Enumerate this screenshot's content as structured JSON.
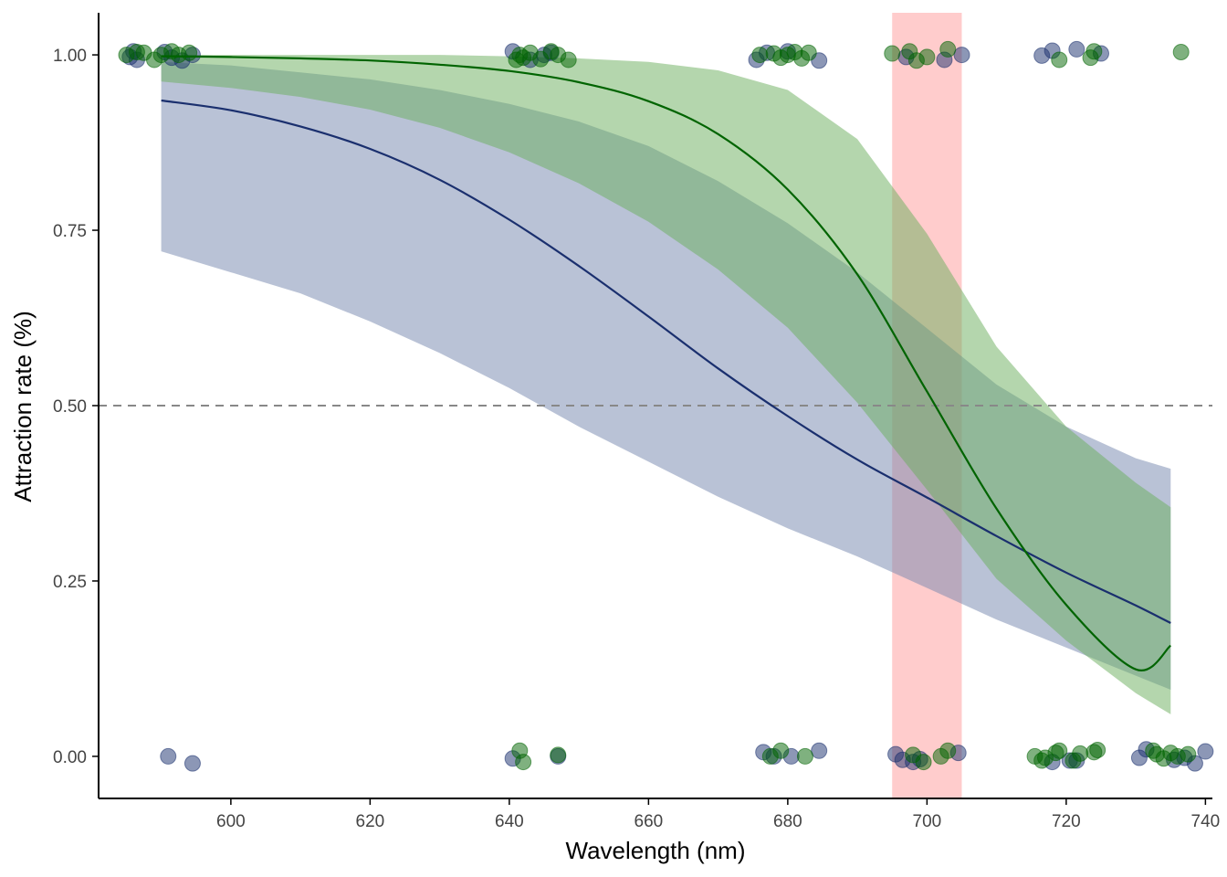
{
  "chart_data": {
    "type": "scatter",
    "title": "",
    "xlabel": "Wavelength (nm)",
    "ylabel": "Attraction rate (%)",
    "xlim": [
      581,
      741
    ],
    "ylim": [
      -0.06,
      1.06
    ],
    "x_ticks": [
      600,
      620,
      640,
      660,
      680,
      700,
      720,
      740
    ],
    "x_tick_labels": [
      "600",
      "620",
      "640",
      "660",
      "680",
      "700",
      "720",
      "740"
    ],
    "y_ticks": [
      0.0,
      0.25,
      0.5,
      0.75,
      1.0
    ],
    "y_tick_labels": [
      "0.00",
      "0.25",
      "0.50",
      "0.75",
      "1.00"
    ],
    "grid": false,
    "legend": "none",
    "reference_line": {
      "y": 0.5,
      "style": "dashed",
      "color": "#888888"
    },
    "highlight_band": {
      "x_min": 695,
      "x_max": 705,
      "color": "#ff9999",
      "opacity": 0.5
    },
    "series": [
      {
        "color": "#1a2f6e",
        "fill_color": "#7385ad",
        "x": [
          590,
          600,
          610,
          620,
          630,
          640,
          650,
          660,
          670,
          680,
          690,
          700,
          710,
          720,
          730,
          735
        ],
        "fit": [
          0.935,
          0.921,
          0.898,
          0.866,
          0.822,
          0.765,
          0.699,
          0.627,
          0.553,
          0.485,
          0.423,
          0.369,
          0.314,
          0.262,
          0.215,
          0.19
        ],
        "lower": [
          0.72,
          0.69,
          0.66,
          0.62,
          0.575,
          0.525,
          0.47,
          0.42,
          0.37,
          0.325,
          0.285,
          0.24,
          0.195,
          0.155,
          0.115,
          0.095
        ],
        "upper": [
          0.99,
          0.985,
          0.975,
          0.965,
          0.95,
          0.93,
          0.905,
          0.87,
          0.82,
          0.76,
          0.69,
          0.61,
          0.53,
          0.47,
          0.425,
          0.41
        ],
        "points": [
          [
            591.0,
            0.0
          ],
          [
            594.5,
            -0.01
          ],
          [
            640.5,
            -0.003
          ],
          [
            647.0,
            0.0
          ],
          [
            676.5,
            0.006
          ],
          [
            678.0,
            0.0
          ],
          [
            680.5,
            0.0
          ],
          [
            684.5,
            0.008
          ],
          [
            695.5,
            0.003
          ],
          [
            696.5,
            -0.005
          ],
          [
            698.0,
            -0.008
          ],
          [
            699.0,
            -0.004
          ],
          [
            704.5,
            0.005
          ],
          [
            718.0,
            -0.008
          ],
          [
            720.5,
            -0.006
          ],
          [
            721.5,
            -0.006
          ],
          [
            730.5,
            -0.002
          ],
          [
            731.5,
            0.01
          ],
          [
            735.5,
            -0.005
          ],
          [
            737.0,
            -0.002
          ],
          [
            738.5,
            -0.01
          ],
          [
            740.0,
            0.007
          ],
          [
            585.5,
            0.997
          ],
          [
            586.0,
            1.005
          ],
          [
            586.5,
            0.993
          ],
          [
            590.5,
            1.004
          ],
          [
            591.5,
            0.996
          ],
          [
            593.0,
            0.992
          ],
          [
            594.5,
            1.0
          ],
          [
            640.5,
            1.005
          ],
          [
            643.0,
            0.993
          ],
          [
            645.0,
            1.0
          ],
          [
            646.0,
            1.003
          ],
          [
            675.5,
            0.993
          ],
          [
            677.0,
            1.003
          ],
          [
            680.0,
            1.005
          ],
          [
            684.5,
            0.992
          ],
          [
            697.0,
            0.997
          ],
          [
            702.5,
            0.993
          ],
          [
            705.0,
            1.0
          ],
          [
            716.5,
            0.999
          ],
          [
            718.0,
            1.006
          ],
          [
            721.5,
            1.008
          ],
          [
            725.0,
            1.002
          ]
        ]
      },
      {
        "color": "#006400",
        "fill_color": "#6aae5c",
        "x": [
          590,
          600,
          610,
          620,
          630,
          640,
          650,
          660,
          670,
          680,
          690,
          700,
          710,
          720,
          730,
          735
        ],
        "fit": [
          0.998,
          0.997,
          0.995,
          0.992,
          0.986,
          0.977,
          0.961,
          0.934,
          0.887,
          0.808,
          0.687,
          0.52,
          0.353,
          0.216,
          0.124,
          0.158
        ],
        "lower": [
          0.962,
          0.953,
          0.94,
          0.922,
          0.896,
          0.861,
          0.817,
          0.762,
          0.694,
          0.611,
          0.504,
          0.38,
          0.253,
          0.165,
          0.09,
          0.06
        ],
        "upper": [
          1.0,
          1.0,
          1.0,
          1.0,
          1.0,
          0.998,
          0.995,
          0.99,
          0.978,
          0.95,
          0.88,
          0.745,
          0.584,
          0.47,
          0.39,
          0.355
        ],
        "points": [
          [
            641.5,
            0.008
          ],
          [
            642.0,
            -0.008
          ],
          [
            647.0,
            0.002
          ],
          [
            677.5,
            0.0
          ],
          [
            679.0,
            0.008
          ],
          [
            682.5,
            0.0
          ],
          [
            698.0,
            0.002
          ],
          [
            699.5,
            -0.008
          ],
          [
            702.0,
            0.0
          ],
          [
            703.0,
            0.008
          ],
          [
            715.5,
            0.0
          ],
          [
            716.5,
            -0.006
          ],
          [
            717.0,
            -0.002
          ],
          [
            718.5,
            0.005
          ],
          [
            719.0,
            0.008
          ],
          [
            721.0,
            -0.006
          ],
          [
            722.0,
            0.004
          ],
          [
            724.0,
            0.006
          ],
          [
            724.5,
            0.009
          ],
          [
            732.5,
            0.008
          ],
          [
            733.0,
            0.003
          ],
          [
            734.0,
            -0.003
          ],
          [
            735.0,
            0.005
          ],
          [
            736.0,
            0.0
          ],
          [
            737.5,
            0.003
          ],
          [
            585.0,
            1.0
          ],
          [
            586.5,
            1.004
          ],
          [
            587.5,
            1.003
          ],
          [
            589.0,
            0.993
          ],
          [
            590.0,
            1.0
          ],
          [
            591.5,
            1.005
          ],
          [
            592.5,
            1.0
          ],
          [
            594.0,
            1.003
          ],
          [
            641.0,
            0.993
          ],
          [
            641.5,
            1.0
          ],
          [
            642.0,
            0.996
          ],
          [
            643.0,
            1.003
          ],
          [
            644.5,
            0.994
          ],
          [
            646.0,
            1.005
          ],
          [
            647.0,
            1.0
          ],
          [
            648.5,
            0.993
          ],
          [
            676.0,
            1.0
          ],
          [
            678.0,
            1.002
          ],
          [
            679.0,
            0.996
          ],
          [
            680.0,
            1.0
          ],
          [
            681.0,
            1.004
          ],
          [
            682.0,
            0.995
          ],
          [
            683.0,
            1.003
          ],
          [
            695.0,
            1.002
          ],
          [
            697.5,
            1.005
          ],
          [
            698.5,
            0.992
          ],
          [
            700.0,
            0.997
          ],
          [
            703.0,
            1.008
          ],
          [
            719.0,
            0.993
          ],
          [
            723.5,
            0.996
          ],
          [
            724.0,
            1.005
          ],
          [
            736.5,
            1.004
          ]
        ]
      }
    ]
  }
}
